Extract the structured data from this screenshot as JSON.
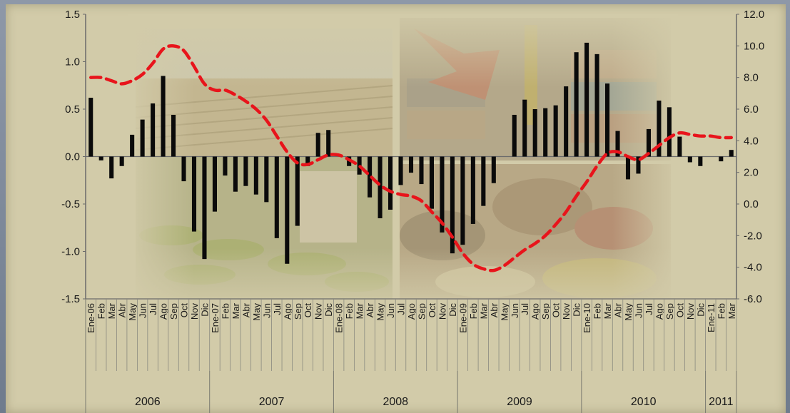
{
  "chart_data": {
    "type": "bar",
    "left_axis": {
      "ylim": [
        -1.5,
        1.5
      ],
      "ticks": [
        "1.5",
        "1.0",
        "0.5",
        "0.0",
        "-0.5",
        "-1.0",
        "-1.5"
      ]
    },
    "right_axis": {
      "ylim": [
        -6.0,
        12.0
      ],
      "ticks": [
        "12.0",
        "10.0",
        "8.0",
        "6.0",
        "4.0",
        "2.0",
        "0.0",
        "-2.0",
        "-4.0",
        "-6.0"
      ]
    },
    "months": [
      "Ene-06",
      "Feb",
      "Mar",
      "Abr",
      "May",
      "Jun",
      "Jul",
      "Ago",
      "Sep",
      "Oct",
      "Nov",
      "Dic",
      "Ene-07",
      "Feb",
      "Mar",
      "Abr",
      "May",
      "Jun",
      "Jul",
      "Ago",
      "Sep",
      "Oct",
      "Nov",
      "Dic",
      "Ene-08",
      "Feb",
      "Mar",
      "Abr",
      "May",
      "Jun",
      "Jul",
      "Ago",
      "Sep",
      "Oct",
      "Nov",
      "Dic",
      "Ene-09",
      "Feb",
      "Mar",
      "Abr",
      "May",
      "Jun",
      "Jul",
      "Ago",
      "Sep",
      "Oct",
      "Nov",
      "Dic",
      "Ene-10",
      "Feb",
      "Mar",
      "Abr",
      "May",
      "Jun",
      "Jul",
      "Ago",
      "Sep",
      "Oct",
      "Nov",
      "Dic",
      "Ene-11",
      "Feb",
      "Mar"
    ],
    "years": [
      {
        "label": "2006",
        "months": 12
      },
      {
        "label": "2007",
        "months": 12
      },
      {
        "label": "2008",
        "months": 12
      },
      {
        "label": "2009",
        "months": 12
      },
      {
        "label": "2010",
        "months": 12
      },
      {
        "label": "2011",
        "months": 3
      }
    ],
    "bars": {
      "axis": "left",
      "color": "#0a0a0a",
      "values": [
        0.62,
        -0.04,
        -0.23,
        -0.1,
        0.23,
        0.39,
        0.56,
        0.85,
        0.44,
        -0.26,
        -0.79,
        -1.08,
        -0.58,
        -0.2,
        -0.37,
        -0.31,
        -0.4,
        -0.48,
        -0.86,
        -1.13,
        -0.73,
        -0.1,
        0.25,
        0.28,
        0.0,
        -0.1,
        -0.19,
        -0.43,
        -0.65,
        -0.56,
        -0.3,
        -0.17,
        -0.29,
        -0.55,
        -0.8,
        -1.02,
        -0.93,
        -0.71,
        -0.52,
        -0.28,
        0.0,
        0.44,
        0.6,
        0.5,
        0.51,
        0.54,
        0.74,
        1.1,
        1.2,
        1.08,
        0.77,
        0.27,
        -0.24,
        -0.18,
        0.29,
        0.59,
        0.52,
        0.21,
        -0.06,
        -0.1,
        0.0,
        -0.05,
        0.07
      ]
    },
    "line": {
      "axis": "right",
      "style": "dashed",
      "color": "#e8141b",
      "values": [
        8.0,
        8.0,
        7.8,
        7.6,
        7.8,
        8.2,
        8.9,
        9.8,
        10.0,
        9.7,
        8.7,
        7.6,
        7.2,
        7.2,
        6.9,
        6.5,
        6.0,
        5.3,
        4.3,
        3.3,
        2.6,
        2.5,
        2.8,
        3.1,
        3.1,
        2.8,
        2.4,
        1.8,
        1.2,
        0.8,
        0.6,
        0.5,
        0.2,
        -0.5,
        -1.2,
        -2.1,
        -3.1,
        -3.8,
        -4.1,
        -4.2,
        -3.9,
        -3.4,
        -2.9,
        -2.5,
        -2.0,
        -1.3,
        -0.5,
        0.5,
        1.4,
        2.4,
        3.2,
        3.3,
        3.0,
        2.8,
        3.2,
        3.7,
        4.2,
        4.5,
        4.4,
        4.3,
        4.3,
        4.2,
        4.2
      ]
    },
    "grid": false
  }
}
